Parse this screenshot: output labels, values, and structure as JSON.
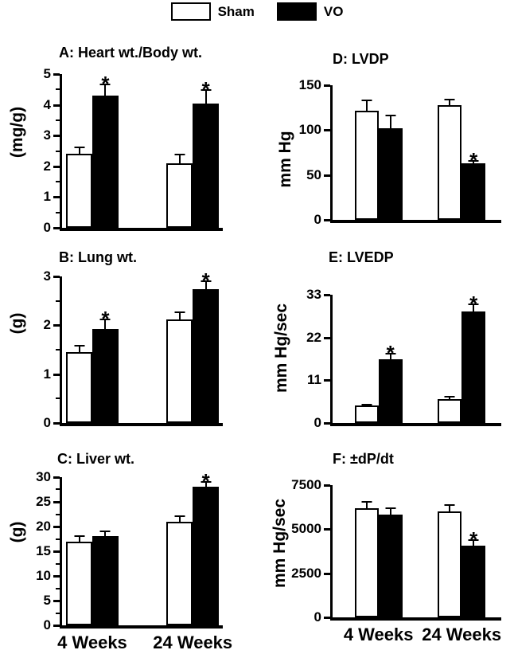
{
  "figure": {
    "legend": [
      {
        "label": "Sham",
        "fill": "#ffffff"
      },
      {
        "label": "VO",
        "fill": "#000000"
      }
    ],
    "colors": {
      "axis": "#000000",
      "background": "#ffffff"
    }
  },
  "chart_data": [
    {
      "panel": "A",
      "type": "bar",
      "title": "A: Heart wt./Body wt.",
      "ylabel": "(mg/g)",
      "ylim": [
        0,
        5
      ],
      "yticks": [
        0,
        1,
        2,
        3,
        4,
        5
      ],
      "minor_ticks": true,
      "categories": [
        "4 Weeks",
        "24 Weeks"
      ],
      "show_x_tick_labels": false,
      "sig_marker": "*",
      "legend_position": "top-center",
      "grid": false,
      "series": [
        {
          "name": "Sham",
          "fill": "#ffffff",
          "values": [
            2.4,
            2.1
          ],
          "errors": [
            0.25,
            0.3
          ],
          "sig": [
            false,
            false
          ]
        },
        {
          "name": "VO",
          "fill": "#000000",
          "values": [
            4.3,
            4.05
          ],
          "errors": [
            0.4,
            0.45
          ],
          "sig": [
            true,
            true
          ]
        }
      ]
    },
    {
      "panel": "B",
      "type": "bar",
      "title": "B: Lung wt.",
      "ylabel": "(g)",
      "ylim": [
        0,
        3
      ],
      "yticks": [
        0,
        1,
        2,
        3
      ],
      "minor_ticks": true,
      "categories": [
        "4 Weeks",
        "24 Weeks"
      ],
      "show_x_tick_labels": false,
      "sig_marker": "*",
      "grid": false,
      "series": [
        {
          "name": "Sham",
          "fill": "#ffffff",
          "values": [
            1.45,
            2.12
          ],
          "errors": [
            0.15,
            0.16
          ],
          "sig": [
            false,
            false
          ]
        },
        {
          "name": "VO",
          "fill": "#000000",
          "values": [
            1.93,
            2.74
          ],
          "errors": [
            0.2,
            0.18
          ],
          "sig": [
            true,
            true
          ]
        }
      ]
    },
    {
      "panel": "C",
      "type": "bar",
      "title": "C: Liver wt.",
      "ylabel": "(g)",
      "ylim": [
        0,
        30
      ],
      "yticks": [
        0,
        5,
        10,
        15,
        20,
        25,
        30
      ],
      "minor_ticks": true,
      "categories": [
        "4 Weeks",
        "24 Weeks"
      ],
      "show_x_tick_labels": true,
      "sig_marker": "*",
      "grid": false,
      "series": [
        {
          "name": "Sham",
          "fill": "#ffffff",
          "values": [
            17,
            21
          ],
          "errors": [
            1.3,
            1.3
          ],
          "sig": [
            false,
            false
          ]
        },
        {
          "name": "VO",
          "fill": "#000000",
          "values": [
            18,
            28
          ],
          "errors": [
            1.2,
            1.2
          ],
          "sig": [
            false,
            true
          ]
        }
      ]
    },
    {
      "panel": "D",
      "type": "bar",
      "title": "D: LVDP",
      "ylabel": "mm Hg",
      "ylim": [
        0,
        150
      ],
      "yticks": [
        0,
        50,
        100,
        150
      ],
      "minor_ticks": false,
      "categories": [
        "4 Weeks",
        "24 Weeks"
      ],
      "show_x_tick_labels": false,
      "sig_marker": "*",
      "grid": false,
      "series": [
        {
          "name": "Sham",
          "fill": "#ffffff",
          "values": [
            122,
            128
          ],
          "errors": [
            12,
            7
          ],
          "sig": [
            false,
            false
          ]
        },
        {
          "name": "VO",
          "fill": "#000000",
          "values": [
            102,
            63
          ],
          "errors": [
            15,
            4
          ],
          "sig": [
            false,
            true
          ]
        }
      ]
    },
    {
      "panel": "E",
      "type": "bar",
      "title": "E: LVEDP",
      "ylabel": "mm Hg/sec",
      "ylim": [
        0,
        33
      ],
      "yticks": [
        0,
        11,
        22,
        33
      ],
      "minor_ticks": false,
      "categories": [
        "4 Weeks",
        "24 Weeks"
      ],
      "show_x_tick_labels": false,
      "sig_marker": "*",
      "grid": false,
      "series": [
        {
          "name": "Sham",
          "fill": "#ffffff",
          "values": [
            4.5,
            6.1
          ],
          "errors": [
            0.4,
            0.9
          ],
          "sig": [
            false,
            false
          ]
        },
        {
          "name": "VO",
          "fill": "#000000",
          "values": [
            16.5,
            28.8
          ],
          "errors": [
            1.5,
            1.9
          ],
          "sig": [
            true,
            true
          ]
        }
      ]
    },
    {
      "panel": "F",
      "type": "bar",
      "title": "F: ±dP/dt",
      "ylabel": "mm Hg/sec",
      "ylim": [
        0,
        7500
      ],
      "yticks": [
        0,
        2500,
        5000,
        7500
      ],
      "minor_ticks": false,
      "categories": [
        "4 Weeks",
        "24 Weeks"
      ],
      "show_x_tick_labels": true,
      "sig_marker": "*",
      "grid": false,
      "series": [
        {
          "name": "Sham",
          "fill": "#ffffff",
          "values": [
            6200,
            6000
          ],
          "errors": [
            380,
            410
          ],
          "sig": [
            false,
            false
          ]
        },
        {
          "name": "VO",
          "fill": "#000000",
          "values": [
            5850,
            4080
          ],
          "errors": [
            390,
            350
          ],
          "sig": [
            false,
            true
          ]
        }
      ]
    }
  ]
}
